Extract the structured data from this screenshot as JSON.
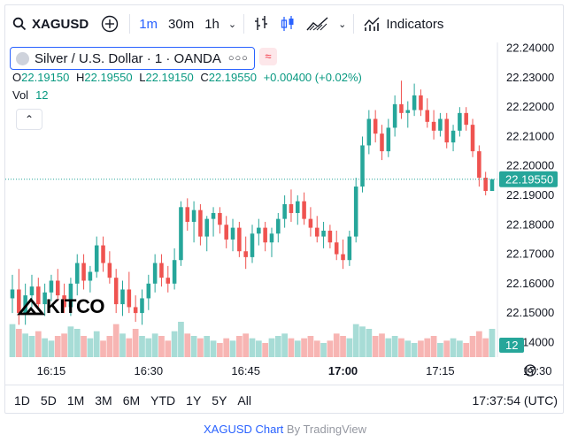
{
  "toolbar": {
    "symbol": "XAGUSD",
    "timeframes": [
      "1m",
      "30m",
      "1h"
    ],
    "active_timeframe": "1m",
    "indicators_label": "Indicators"
  },
  "legend": {
    "title": "Silver / U.S. Dollar · 1 · OANDA",
    "o_label": "O",
    "o": "22.19150",
    "h_label": "H",
    "h": "22.19550",
    "l_label": "L",
    "l": "22.19150",
    "c_label": "C",
    "c": "22.19550",
    "change": "+0.00400 (+0.02%)",
    "vol_label": "Vol",
    "vol_value": "12"
  },
  "watermark": "KITCO",
  "bottombar": {
    "ranges": [
      "1D",
      "5D",
      "1M",
      "3M",
      "6M",
      "YTD",
      "1Y",
      "5Y",
      "All"
    ],
    "clock": "17:37:54 (UTC)"
  },
  "credit": {
    "link": "XAGUSD Chart",
    "text": "By TradingView"
  },
  "colors": {
    "up": "#26a69a",
    "down": "#ef5350",
    "vol_up": "#a7dcd6",
    "vol_down": "#f7b5b3",
    "accent": "#2962ff",
    "price_badge": "#26a69a"
  },
  "chart_data": {
    "type": "candlestick",
    "symbol": "XAGUSD",
    "interval": "1m",
    "y_ticks": [
      22.14,
      22.15,
      22.16,
      22.17,
      22.18,
      22.19,
      22.2,
      22.21,
      22.22,
      22.23,
      22.24
    ],
    "y_tick_labels": [
      "22.14000",
      "22.15000",
      "22.16000",
      "22.17000",
      "22.18000",
      "22.19000",
      "22.20000",
      "22.21000",
      "22.22000",
      "22.23000",
      "22.24000"
    ],
    "x_ticks": [
      "16:15",
      "16:30",
      "16:45",
      "17:00",
      "17:15",
      "17:30"
    ],
    "x_ticks_minutes": [
      6,
      21,
      36,
      51,
      66,
      81
    ],
    "last_price": "22.19550",
    "last_volume": "12",
    "ylim": [
      22.135,
      22.242
    ],
    "candles": [
      [
        22.155,
        22.163,
        22.15,
        22.158,
        14
      ],
      [
        22.158,
        22.165,
        22.146,
        22.15,
        12
      ],
      [
        22.15,
        22.16,
        22.146,
        22.156,
        10
      ],
      [
        22.156,
        22.163,
        22.152,
        22.159,
        9
      ],
      [
        22.159,
        22.162,
        22.151,
        22.153,
        11
      ],
      [
        22.153,
        22.16,
        22.149,
        22.157,
        8
      ],
      [
        22.157,
        22.163,
        22.154,
        22.161,
        7
      ],
      [
        22.161,
        22.165,
        22.154,
        22.156,
        9
      ],
      [
        22.156,
        22.16,
        22.15,
        22.152,
        10
      ],
      [
        22.152,
        22.162,
        22.149,
        22.16,
        13
      ],
      [
        22.16,
        22.17,
        22.156,
        22.167,
        12
      ],
      [
        22.167,
        22.17,
        22.158,
        22.161,
        9
      ],
      [
        22.161,
        22.166,
        22.157,
        22.164,
        8
      ],
      [
        22.164,
        22.176,
        22.162,
        22.173,
        11
      ],
      [
        22.173,
        22.176,
        22.164,
        22.167,
        7
      ],
      [
        22.167,
        22.171,
        22.16,
        22.162,
        9
      ],
      [
        22.162,
        22.165,
        22.15,
        22.153,
        14
      ],
      [
        22.153,
        22.161,
        22.149,
        22.158,
        10
      ],
      [
        22.158,
        22.164,
        22.15,
        22.152,
        8
      ],
      [
        22.152,
        22.156,
        22.147,
        22.15,
        12
      ],
      [
        22.15,
        22.158,
        22.146,
        22.155,
        9
      ],
      [
        22.155,
        22.163,
        22.151,
        22.16,
        8
      ],
      [
        22.16,
        22.17,
        22.157,
        22.167,
        10
      ],
      [
        22.167,
        22.17,
        22.159,
        22.162,
        9
      ],
      [
        22.162,
        22.166,
        22.157,
        22.16,
        7
      ],
      [
        22.16,
        22.172,
        22.158,
        22.168,
        11
      ],
      [
        22.168,
        22.188,
        22.166,
        22.186,
        15
      ],
      [
        22.186,
        22.189,
        22.178,
        22.181,
        10
      ],
      [
        22.181,
        22.188,
        22.174,
        22.185,
        9
      ],
      [
        22.185,
        22.187,
        22.173,
        22.176,
        8
      ],
      [
        22.176,
        22.183,
        22.171,
        22.182,
        9
      ],
      [
        22.182,
        22.186,
        22.176,
        22.184,
        7
      ],
      [
        22.184,
        22.186,
        22.177,
        22.18,
        6
      ],
      [
        22.18,
        22.183,
        22.172,
        22.175,
        8
      ],
      [
        22.175,
        22.182,
        22.171,
        22.179,
        7
      ],
      [
        22.179,
        22.181,
        22.169,
        22.171,
        9
      ],
      [
        22.171,
        22.176,
        22.165,
        22.169,
        10
      ],
      [
        22.169,
        22.18,
        22.167,
        22.177,
        8
      ],
      [
        22.177,
        22.182,
        22.173,
        22.179,
        7
      ],
      [
        22.179,
        22.181,
        22.171,
        22.174,
        6
      ],
      [
        22.174,
        22.179,
        22.169,
        22.177,
        8
      ],
      [
        22.177,
        22.184,
        22.174,
        22.182,
        9
      ],
      [
        22.182,
        22.19,
        22.179,
        22.187,
        10
      ],
      [
        22.187,
        22.192,
        22.181,
        22.184,
        8
      ],
      [
        22.184,
        22.19,
        22.18,
        22.188,
        7
      ],
      [
        22.188,
        22.191,
        22.18,
        22.182,
        8
      ],
      [
        22.182,
        22.186,
        22.176,
        22.179,
        9
      ],
      [
        22.179,
        22.183,
        22.174,
        22.176,
        7
      ],
      [
        22.176,
        22.181,
        22.172,
        22.178,
        6
      ],
      [
        22.178,
        22.18,
        22.172,
        22.174,
        7
      ],
      [
        22.174,
        22.178,
        22.168,
        22.17,
        10
      ],
      [
        22.17,
        22.175,
        22.165,
        22.168,
        9
      ],
      [
        22.168,
        22.178,
        22.166,
        22.176,
        8
      ],
      [
        22.176,
        22.196,
        22.174,
        22.193,
        14
      ],
      [
        22.193,
        22.21,
        22.191,
        22.207,
        13
      ],
      [
        22.207,
        22.219,
        22.204,
        22.216,
        12
      ],
      [
        22.216,
        22.219,
        22.208,
        22.211,
        9
      ],
      [
        22.211,
        22.214,
        22.202,
        22.205,
        10
      ],
      [
        22.205,
        22.216,
        22.203,
        22.213,
        8
      ],
      [
        22.213,
        22.224,
        22.21,
        22.221,
        9
      ],
      [
        22.221,
        22.229,
        22.216,
        22.218,
        8
      ],
      [
        22.218,
        22.222,
        22.213,
        22.219,
        7
      ],
      [
        22.219,
        22.228,
        22.217,
        22.224,
        6
      ],
      [
        22.224,
        22.226,
        22.217,
        22.219,
        7
      ],
      [
        22.219,
        22.223,
        22.213,
        22.215,
        8
      ],
      [
        22.215,
        22.219,
        22.209,
        22.212,
        9
      ],
      [
        22.212,
        22.218,
        22.21,
        22.216,
        6
      ],
      [
        22.216,
        22.218,
        22.206,
        22.208,
        7
      ],
      [
        22.208,
        22.214,
        22.205,
        22.212,
        8
      ],
      [
        22.212,
        22.22,
        22.21,
        22.218,
        7
      ],
      [
        22.218,
        22.22,
        22.212,
        22.214,
        6
      ],
      [
        22.214,
        22.216,
        22.203,
        22.205,
        9
      ],
      [
        22.205,
        22.207,
        22.193,
        22.196,
        11
      ],
      [
        22.196,
        22.198,
        22.19,
        22.1915,
        8
      ],
      [
        22.1915,
        22.1955,
        22.1915,
        22.1955,
        12
      ]
    ]
  }
}
